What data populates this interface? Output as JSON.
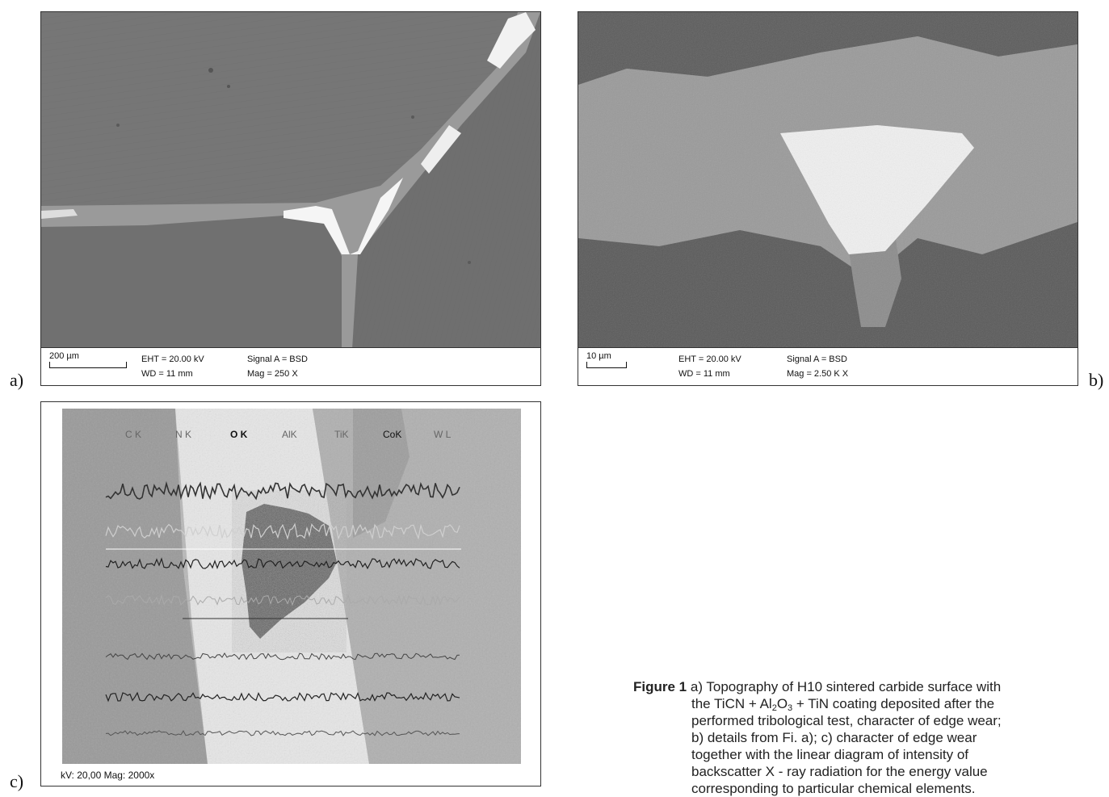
{
  "panels": {
    "a": {
      "letter": "a)",
      "scale_text": "200 µm",
      "eht": "EHT = 20.00 kV",
      "wd": "WD =  11 mm",
      "signal": "Signal A = BSD",
      "mag": "Mag =   250 X"
    },
    "b": {
      "letter": "b)",
      "scale_text": "10 µm",
      "eht": "EHT = 20.00 kV",
      "wd": "WD =  11 mm",
      "signal": "Signal A = BSD",
      "mag": "Mag =   2.50 K X"
    },
    "c": {
      "letter": "c)",
      "footer": "kV: 20,00 Mag: 2000x",
      "element_labels": [
        "C K",
        "N K",
        "O K",
        "AlK",
        "TiK",
        "CoK",
        "W L"
      ]
    }
  },
  "caption": {
    "lead": "Figure 1",
    "line1": "a) Topography of H10 sintered carbide surface with",
    "line2_pre": "the TiCN + Al",
    "sub2": "2",
    "line2_mid": "O",
    "sub3": "3",
    "line2_post": " + TiN coating deposited after the",
    "line3": "performed tribological test, character of edge wear;",
    "line4": "b) details from Fi. a); c) character of edge wear",
    "line5": "together with the linear diagram of intensity of",
    "line6": "backscatter X - ray radiation for the energy value",
    "line7": "corresponding to particular chemical elements."
  }
}
